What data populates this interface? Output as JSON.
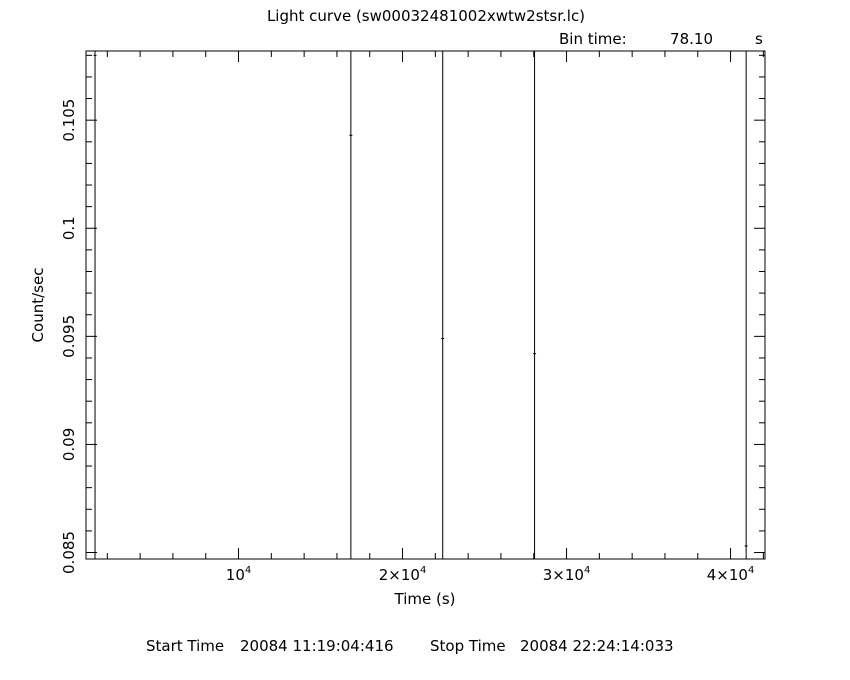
{
  "title": "Light curve (sw00032481002xwtw2stsr.lc)",
  "bin_time": {
    "label": "Bin time:",
    "value": "78.10",
    "unit": "s"
  },
  "footer": {
    "start_label": "Start Time",
    "start_value": "20084 11:19:04:416",
    "stop_label": "Stop Time",
    "stop_value": "20084 22:24:14:033"
  },
  "chart_data": {
    "type": "scatter",
    "title": "Light curve (sw00032481002xwtw2stsr.lc)",
    "xlabel": "Time (s)",
    "ylabel": "Count/sec",
    "xlim": [
      700,
      42100
    ],
    "ylim": [
      0.0847,
      0.1082
    ],
    "log_x": false,
    "log_y": false,
    "grid": false,
    "x_ticks": [
      {
        "value": 10000,
        "mant": "",
        "exp": "4"
      },
      {
        "value": 20000,
        "mant": "2×",
        "exp": "4"
      },
      {
        "value": 30000,
        "mant": "3×",
        "exp": "4"
      },
      {
        "value": 40000,
        "mant": "4×",
        "exp": "4"
      }
    ],
    "y_ticks": [
      0.085,
      0.09,
      0.095,
      0.1,
      0.105
    ],
    "y_tick_labels": [
      "0.085",
      "0.09",
      "0.095",
      "0.1",
      "0.105"
    ],
    "points": [
      {
        "x": 1250,
        "y": 0.108,
        "err": 0.024
      },
      {
        "x": 16850,
        "y": 0.1043,
        "err": 0.024
      },
      {
        "x": 22450,
        "y": 0.0949,
        "err": 0.024
      },
      {
        "x": 28050,
        "y": 0.0942,
        "err": 0.024
      },
      {
        "x": 40950,
        "y": 0.0853,
        "err": 0.024
      }
    ]
  }
}
